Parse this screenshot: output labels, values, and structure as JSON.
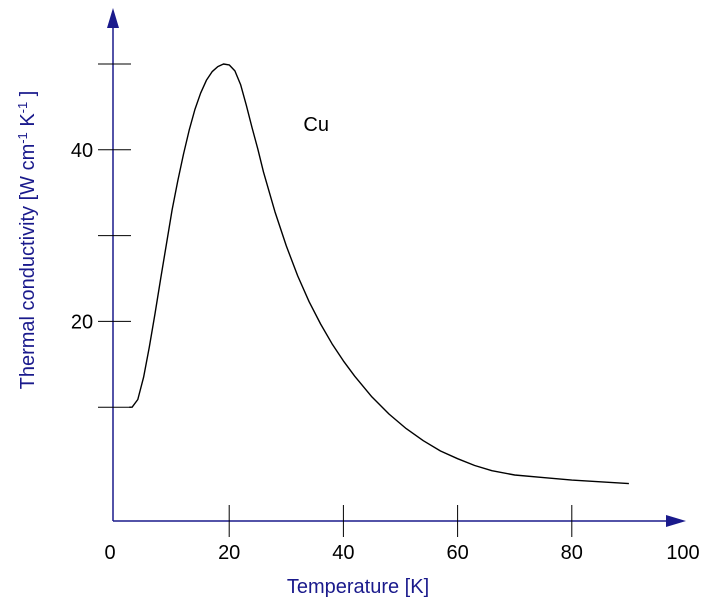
{
  "chart_data": {
    "type": "line",
    "title": "",
    "xlabel": "Temperature [K]",
    "ylabel": "Thermal conductivity [W cm-1 K-1 ]",
    "ylabel_parts": {
      "prefix": "Thermal conductivity [W cm",
      "sup1": "-1",
      "mid": " K",
      "sup2": "-1",
      "suffix": " ]"
    },
    "xlim": [
      0,
      100
    ],
    "ylim": [
      0,
      54
    ],
    "x_ticks": [
      0,
      20,
      40,
      60,
      80,
      100
    ],
    "x_tick_labels": [
      "0",
      "20",
      "40",
      "60",
      "80",
      "100"
    ],
    "x_tick_marks": [
      20,
      40,
      60,
      80
    ],
    "y_ticks": [
      10,
      20,
      30,
      40,
      50
    ],
    "y_tick_labels": [
      {
        "value": 20,
        "label": "20"
      },
      {
        "value": 40,
        "label": "40"
      }
    ],
    "grid": false,
    "legend": "none",
    "annotation": {
      "text": "Cu",
      "x": 33,
      "y": 43
    },
    "colors": {
      "curve": "#000000",
      "axis": "#1a1a8c",
      "ticks": "#000000",
      "labels": "#1a1a8c"
    },
    "series": [
      {
        "x": [
          2.5,
          3,
          4,
          5,
          6,
          7,
          8,
          9,
          10,
          11,
          12,
          13,
          14,
          15,
          16,
          17,
          18,
          19,
          20,
          21,
          22,
          23,
          24,
          25,
          26,
          28,
          30,
          32,
          34,
          36,
          38,
          40,
          42,
          45,
          48,
          51,
          54,
          57,
          60,
          63,
          66,
          70,
          75,
          80,
          85,
          90
        ],
        "values": [
          10,
          10,
          10.9,
          13.5,
          17,
          20.9,
          25,
          29,
          33,
          36.4,
          39.5,
          42.3,
          44.7,
          46.6,
          48.1,
          49.1,
          49.7,
          50,
          49.9,
          49.2,
          47.6,
          45.2,
          42.6,
          40.1,
          37.4,
          32.8,
          28.8,
          25.3,
          22.3,
          19.7,
          17.4,
          15.4,
          13.6,
          11.2,
          9.2,
          7.5,
          6.1,
          4.9,
          4.0,
          3.2,
          2.6,
          2.1,
          1.8,
          1.5,
          1.3,
          1.1
        ]
      }
    ]
  }
}
